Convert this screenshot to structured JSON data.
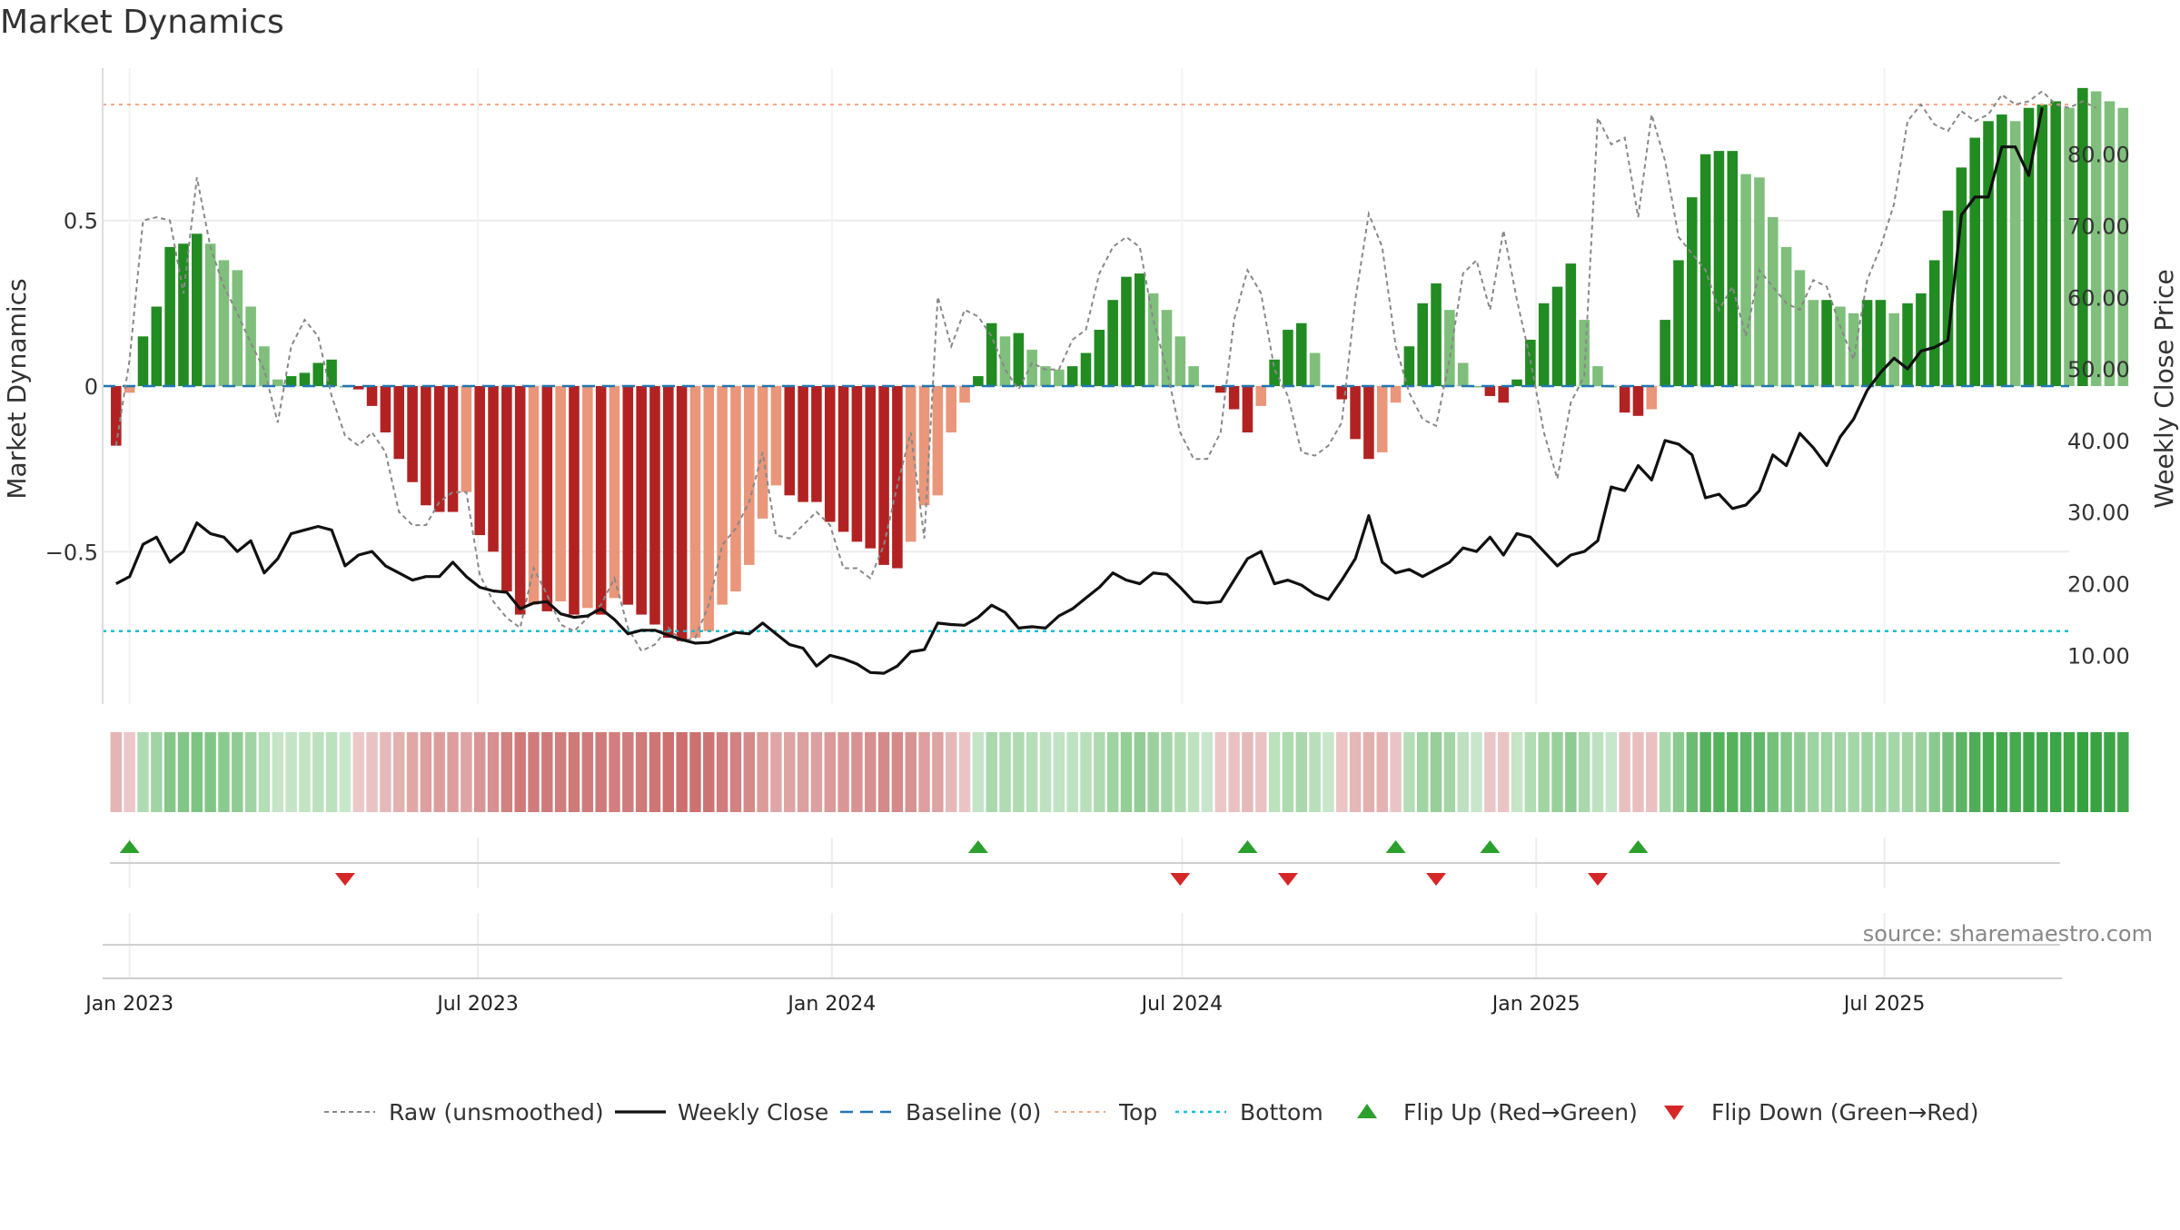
{
  "title": "Market Dynamics",
  "watermark": "source: sharemaestro.com",
  "colors": {
    "green_strong": "#228B22",
    "green_light": "#7fbf7b",
    "red_strong": "#b22222",
    "red_light": "#e9967a",
    "raw": "#888888",
    "close": "#111111",
    "baseline": "#1f77b4",
    "top": "#f4a582",
    "bottom": "#17becf",
    "flip_up": "#2ca02c",
    "flip_down": "#d62728"
  },
  "chart_data": {
    "type": "bar",
    "title": "Market Dynamics",
    "ylabel_left": "Market Dynamics",
    "ylabel_right": "Weekly Close Price",
    "x_tick_labels": [
      "Jan 2023",
      "Jul 2023",
      "Jan 2024",
      "Jul 2024",
      "Jan 2025",
      "Jul 2025"
    ],
    "x_tick_dates": [
      "2023-01-01",
      "2023-07-01",
      "2024-01-01",
      "2024-07-01",
      "2025-01-01",
      "2025-07-01"
    ],
    "x_range": [
      "2022-12-18",
      "2025-10-05"
    ],
    "left_ticks": [
      0.5,
      0,
      -0.5
    ],
    "left_tick_labels": [
      "0.5",
      "0",
      "−0.5"
    ],
    "left_ylim": [
      -0.96,
      0.96
    ],
    "right_ticks": [
      10,
      20,
      30,
      40,
      50,
      60,
      70,
      80
    ],
    "right_tick_labels": [
      "10.00",
      "20.00",
      "30.00",
      "40.00",
      "50.00",
      "60.00",
      "70.00",
      "80.00"
    ],
    "right_ylim": [
      3.2,
      92
    ],
    "top_level": 0.85,
    "bottom_level": -0.74,
    "baseline": 0,
    "start_date": "2022-12-25",
    "week_step_days": 7,
    "dynamics": [
      -0.18,
      -0.02,
      0.15,
      0.24,
      0.42,
      0.43,
      0.46,
      0.43,
      0.38,
      0.35,
      0.24,
      0.12,
      0.02,
      0.03,
      0.04,
      0.07,
      0.08,
      0.0,
      -0.01,
      -0.06,
      -0.14,
      -0.22,
      -0.29,
      -0.36,
      -0.38,
      -0.38,
      -0.32,
      -0.45,
      -0.5,
      -0.62,
      -0.69,
      -0.66,
      -0.68,
      -0.65,
      -0.69,
      -0.67,
      -0.69,
      -0.64,
      -0.66,
      -0.69,
      -0.72,
      -0.76,
      -0.77,
      -0.76,
      -0.74,
      -0.66,
      -0.62,
      -0.54,
      -0.4,
      -0.3,
      -0.33,
      -0.35,
      -0.35,
      -0.41,
      -0.44,
      -0.47,
      -0.49,
      -0.54,
      -0.55,
      -0.47,
      -0.36,
      -0.33,
      -0.14,
      -0.05,
      0.03,
      0.19,
      0.15,
      0.16,
      0.11,
      0.06,
      0.05,
      0.06,
      0.1,
      0.17,
      0.26,
      0.33,
      0.34,
      0.28,
      0.23,
      0.15,
      0.06,
      0.0,
      -0.02,
      -0.07,
      -0.14,
      -0.06,
      0.08,
      0.17,
      0.19,
      0.1,
      0.0,
      -0.04,
      -0.16,
      -0.22,
      -0.2,
      -0.05,
      0.12,
      0.25,
      0.31,
      0.23,
      0.07,
      0.0,
      -0.03,
      -0.05,
      0.02,
      0.14,
      0.25,
      0.3,
      0.37,
      0.2,
      0.06,
      0.0,
      -0.08,
      -0.09,
      -0.07,
      0.2,
      0.38,
      0.57,
      0.7,
      0.71,
      0.71,
      0.64,
      0.63,
      0.51,
      0.42,
      0.35,
      0.26,
      0.26,
      0.24,
      0.22,
      0.26,
      0.26,
      0.22,
      0.25,
      0.28,
      0.38,
      0.53,
      0.66,
      0.75,
      0.8,
      0.82,
      0.8,
      0.84,
      0.85,
      0.86,
      0.84,
      0.9,
      0.89,
      0.86,
      0.84
    ],
    "raw": [
      -0.18,
      0.08,
      0.5,
      0.51,
      0.5,
      0.28,
      0.63,
      0.42,
      0.3,
      0.22,
      0.13,
      0.05,
      -0.11,
      0.12,
      0.2,
      0.15,
      -0.03,
      -0.15,
      -0.18,
      -0.14,
      -0.2,
      -0.38,
      -0.42,
      -0.42,
      -0.35,
      -0.32,
      -0.32,
      -0.57,
      -0.65,
      -0.7,
      -0.73,
      -0.55,
      -0.63,
      -0.72,
      -0.74,
      -0.7,
      -0.66,
      -0.58,
      -0.73,
      -0.8,
      -0.78,
      -0.73,
      -0.77,
      -0.76,
      -0.66,
      -0.48,
      -0.43,
      -0.35,
      -0.2,
      -0.45,
      -0.46,
      -0.42,
      -0.38,
      -0.42,
      -0.55,
      -0.55,
      -0.58,
      -0.48,
      -0.3,
      -0.14,
      -0.46,
      0.27,
      0.12,
      0.23,
      0.21,
      0.15,
      0.05,
      -0.01,
      0.07,
      0.05,
      0.05,
      0.14,
      0.17,
      0.34,
      0.42,
      0.45,
      0.42,
      0.2,
      0.05,
      -0.14,
      -0.22,
      -0.22,
      -0.14,
      0.2,
      0.35,
      0.28,
      0.05,
      -0.03,
      -0.2,
      -0.21,
      -0.18,
      -0.11,
      0.26,
      0.52,
      0.42,
      0.12,
      -0.02,
      -0.1,
      -0.12,
      0.08,
      0.34,
      0.38,
      0.23,
      0.47,
      0.26,
      0.08,
      -0.14,
      -0.28,
      -0.05,
      0.03,
      0.81,
      0.73,
      0.75,
      0.51,
      0.82,
      0.68,
      0.45,
      0.4,
      0.35,
      0.23,
      0.3,
      0.15,
      0.35,
      0.3,
      0.25,
      0.23,
      0.32,
      0.3,
      0.18,
      0.08,
      0.32,
      0.42,
      0.55,
      0.8,
      0.85,
      0.79,
      0.77,
      0.83,
      0.8,
      0.82,
      0.88,
      0.85,
      0.86,
      0.89,
      0.85,
      0.84,
      0.86,
      0.84
    ],
    "weekly_close": [
      20.0,
      21.0,
      25.5,
      26.5,
      23.0,
      24.5,
      28.5,
      27.0,
      26.5,
      24.5,
      26.0,
      21.5,
      23.5,
      27.0,
      27.5,
      28.0,
      27.5,
      22.5,
      24.0,
      24.5,
      22.5,
      21.5,
      20.5,
      21.0,
      21.0,
      23.0,
      21.0,
      19.5,
      19.0,
      18.8,
      16.5,
      17.3,
      17.5,
      15.8,
      15.3,
      15.5,
      16.5,
      15.0,
      13.0,
      13.5,
      13.5,
      12.8,
      12.2,
      11.7,
      11.8,
      12.5,
      13.2,
      13.0,
      14.5,
      13.0,
      11.5,
      11.0,
      8.5,
      10.0,
      9.5,
      8.8,
      7.6,
      7.5,
      8.5,
      10.5,
      10.8,
      14.5,
      14.3,
      14.2,
      15.3,
      17.0,
      16.0,
      13.8,
      14.0,
      13.8,
      15.5,
      16.5,
      18.0,
      19.5,
      21.5,
      20.5,
      20.0,
      21.5,
      21.3,
      19.5,
      17.5,
      17.3,
      17.5,
      20.5,
      23.5,
      24.5,
      20.0,
      20.5,
      19.8,
      18.5,
      17.8,
      20.5,
      23.5,
      29.5,
      23.0,
      21.5,
      22.0,
      21.0,
      22.0,
      23.0,
      25.0,
      24.5,
      26.5,
      24.0,
      27.0,
      26.5,
      24.5,
      22.5,
      24.0,
      24.5,
      26.0,
      33.5,
      33.0,
      36.5,
      34.5,
      40.0,
      39.5,
      38.0,
      32.0,
      32.5,
      30.5,
      31.0,
      33.0,
      38.0,
      36.5,
      41.0,
      39.0,
      36.5,
      40.5,
      43.0,
      47.0,
      49.5,
      51.5,
      50.0,
      52.5,
      53.0,
      54.0,
      71.5,
      74.0,
      74.0,
      81.0,
      81.0,
      77.0,
      86.5
    ],
    "flip_up_dates": [
      "2023-01-01",
      "2024-03-17",
      "2024-08-04",
      "2024-10-20",
      "2024-12-08",
      "2025-02-23"
    ],
    "flip_down_dates": [
      "2023-04-23",
      "2024-06-30",
      "2024-08-25",
      "2024-11-10",
      "2025-02-02"
    ],
    "legend": [
      "Raw (unsmoothed)",
      "Weekly Close",
      "Baseline (0)",
      "Top",
      "Bottom",
      "Flip Up (Red→Green)",
      "Flip Down (Green→Red)"
    ]
  }
}
